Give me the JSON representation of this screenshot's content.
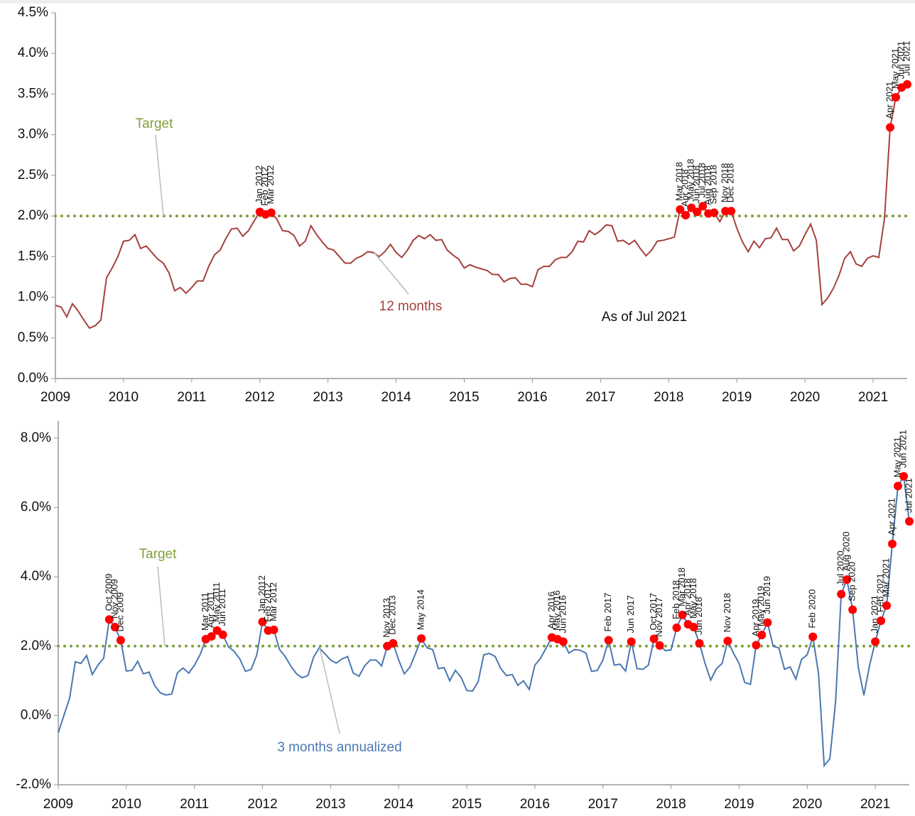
{
  "chart_data": [
    {
      "type": "line",
      "xlim": [
        2009,
        2021.5
      ],
      "xticks": [
        2009,
        2010,
        2011,
        2012,
        2013,
        2014,
        2015,
        2016,
        2017,
        2018,
        2019,
        2020,
        2021
      ],
      "ylim": [
        0,
        4.5
      ],
      "yticks": [
        {
          "value": 0,
          "label": "0.0%"
        },
        {
          "value": 0.5,
          "label": "0.5%"
        },
        {
          "value": 1,
          "label": "1.0%"
        },
        {
          "value": 1.5,
          "label": "1.5%"
        },
        {
          "value": 2,
          "label": "2.0%"
        },
        {
          "value": 2.5,
          "label": "2.5%"
        },
        {
          "value": 3,
          "label": "3.0%"
        },
        {
          "value": 3.5,
          "label": "3.5%"
        },
        {
          "value": 4,
          "label": "4.0%"
        },
        {
          "value": 4.5,
          "label": "4.5%"
        }
      ],
      "target": {
        "value": 2,
        "label": "Target",
        "color": "#7fa03a"
      },
      "note": "As of Jul 2021",
      "series": [
        {
          "name": "12 months",
          "color": "#a5403d",
          "x": [
            2009,
            2009.083,
            2009.167,
            2009.25,
            2009.333,
            2009.417,
            2009.5,
            2009.583,
            2009.667,
            2009.75,
            2009.833,
            2009.917,
            2010,
            2010.083,
            2010.167,
            2010.25,
            2010.333,
            2010.417,
            2010.5,
            2010.583,
            2010.667,
            2010.75,
            2010.833,
            2010.917,
            2011,
            2011.083,
            2011.167,
            2011.25,
            2011.333,
            2011.417,
            2011.5,
            2011.583,
            2011.667,
            2011.75,
            2011.833,
            2011.917,
            2012,
            2012.083,
            2012.167,
            2012.25,
            2012.333,
            2012.417,
            2012.5,
            2012.583,
            2012.667,
            2012.75,
            2012.833,
            2012.917,
            2013,
            2013.083,
            2013.167,
            2013.25,
            2013.333,
            2013.417,
            2013.5,
            2013.583,
            2013.667,
            2013.75,
            2013.833,
            2013.917,
            2014,
            2014.083,
            2014.167,
            2014.25,
            2014.333,
            2014.417,
            2014.5,
            2014.583,
            2014.667,
            2014.75,
            2014.833,
            2014.917,
            2015,
            2015.083,
            2015.167,
            2015.25,
            2015.333,
            2015.417,
            2015.5,
            2015.583,
            2015.667,
            2015.75,
            2015.833,
            2015.917,
            2016,
            2016.083,
            2016.167,
            2016.25,
            2016.333,
            2016.417,
            2016.5,
            2016.583,
            2016.667,
            2016.75,
            2016.833,
            2016.917,
            2017,
            2017.083,
            2017.167,
            2017.25,
            2017.333,
            2017.417,
            2017.5,
            2017.583,
            2017.667,
            2017.75,
            2017.833,
            2017.917,
            2018,
            2018.083,
            2018.167,
            2018.25,
            2018.333,
            2018.417,
            2018.5,
            2018.583,
            2018.667,
            2018.75,
            2018.833,
            2018.917,
            2019,
            2019.083,
            2019.167,
            2019.25,
            2019.333,
            2019.417,
            2019.5,
            2019.583,
            2019.667,
            2019.75,
            2019.833,
            2019.917,
            2020,
            2020.083,
            2020.167,
            2020.25,
            2020.333,
            2020.417,
            2020.5,
            2020.583,
            2020.667,
            2020.75,
            2020.833,
            2020.917,
            2021,
            2021.083,
            2021.167,
            2021.25,
            2021.333,
            2021.417,
            2021.5
          ],
          "values": [
            0.9,
            0.88,
            0.76,
            0.92,
            0.83,
            0.72,
            0.62,
            0.65,
            0.72,
            1.24,
            1.36,
            1.5,
            1.69,
            1.7,
            1.77,
            1.6,
            1.63,
            1.55,
            1.47,
            1.42,
            1.3,
            1.08,
            1.12,
            1.05,
            1.12,
            1.2,
            1.2,
            1.38,
            1.52,
            1.58,
            1.72,
            1.84,
            1.85,
            1.75,
            1.82,
            1.94,
            2.05,
            2.02,
            2.04,
            1.96,
            1.82,
            1.81,
            1.76,
            1.63,
            1.69,
            1.88,
            1.77,
            1.68,
            1.6,
            1.58,
            1.5,
            1.42,
            1.42,
            1.48,
            1.51,
            1.56,
            1.55,
            1.5,
            1.56,
            1.65,
            1.55,
            1.49,
            1.58,
            1.7,
            1.76,
            1.72,
            1.77,
            1.7,
            1.71,
            1.58,
            1.52,
            1.47,
            1.36,
            1.4,
            1.37,
            1.35,
            1.33,
            1.28,
            1.28,
            1.19,
            1.23,
            1.24,
            1.16,
            1.16,
            1.13,
            1.34,
            1.38,
            1.38,
            1.46,
            1.49,
            1.49,
            1.56,
            1.69,
            1.68,
            1.82,
            1.77,
            1.82,
            1.89,
            1.88,
            1.69,
            1.7,
            1.65,
            1.7,
            1.6,
            1.51,
            1.58,
            1.69,
            1.7,
            1.72,
            1.74,
            2.08,
            2.01,
            2.1,
            2.05,
            2.12,
            2.03,
            2.04,
            1.93,
            2.06,
            2.06,
            1.85,
            1.68,
            1.56,
            1.69,
            1.61,
            1.72,
            1.73,
            1.85,
            1.71,
            1.71,
            1.57,
            1.63,
            1.77,
            1.9,
            1.7,
            0.91,
            0.99,
            1.11,
            1.27,
            1.48,
            1.56,
            1.41,
            1.38,
            1.48,
            1.51,
            1.49,
            1.97,
            3.09,
            3.46,
            3.58,
            3.62
          ]
        }
      ],
      "point_color": "#ff0000",
      "points": [
        {
          "x": 2012,
          "y": 2.05,
          "label": "Jan 2012"
        },
        {
          "x": 2012.083,
          "y": 2.02,
          "label": "Feb 2012"
        },
        {
          "x": 2012.167,
          "y": 2.04,
          "label": "Mar 2012"
        },
        {
          "x": 2018.167,
          "y": 2.08,
          "label": "Mar 2018"
        },
        {
          "x": 2018.25,
          "y": 2.01,
          "label": "Apr 2018"
        },
        {
          "x": 2018.333,
          "y": 2.1,
          "label": "May 2018"
        },
        {
          "x": 2018.417,
          "y": 2.05,
          "label": "Jun 2018"
        },
        {
          "x": 2018.5,
          "y": 2.12,
          "label": "Jul 2018"
        },
        {
          "x": 2018.583,
          "y": 2.03,
          "label": "Aug 2018"
        },
        {
          "x": 2018.667,
          "y": 2.04,
          "label": "Sep 2018"
        },
        {
          "x": 2018.833,
          "y": 2.06,
          "label": "Nov 2018"
        },
        {
          "x": 2018.917,
          "y": 2.06,
          "label": "Dec 2018"
        },
        {
          "x": 2021.25,
          "y": 3.09,
          "label": "Apr 2021"
        },
        {
          "x": 2021.333,
          "y": 3.46,
          "label": "May 2021"
        },
        {
          "x": 2021.417,
          "y": 3.58,
          "label": "Jun 2021"
        },
        {
          "x": 2021.5,
          "y": 3.62,
          "label": "Jul 2021"
        }
      ]
    },
    {
      "type": "line",
      "xlim": [
        2009,
        2021.5
      ],
      "xticks": [
        2009,
        2010,
        2011,
        2012,
        2013,
        2014,
        2015,
        2016,
        2017,
        2018,
        2019,
        2020,
        2021
      ],
      "ylim": [
        -2,
        8.5
      ],
      "yticks": [
        {
          "value": -2,
          "label": "-2.0%"
        },
        {
          "value": 0,
          "label": "0.0%"
        },
        {
          "value": 2,
          "label": "2.0%"
        },
        {
          "value": 4,
          "label": "4.0%"
        },
        {
          "value": 6,
          "label": "6.0%"
        },
        {
          "value": 8,
          "label": "8.0%"
        }
      ],
      "target": {
        "value": 2,
        "label": "Target",
        "color": "#7fa03a"
      },
      "series": [
        {
          "name": "3 months annualized",
          "color": "#4a78b0",
          "x": [
            2009,
            2009.083,
            2009.167,
            2009.25,
            2009.333,
            2009.417,
            2009.5,
            2009.583,
            2009.667,
            2009.75,
            2009.833,
            2009.917,
            2010,
            2010.083,
            2010.167,
            2010.25,
            2010.333,
            2010.417,
            2010.5,
            2010.583,
            2010.667,
            2010.75,
            2010.833,
            2010.917,
            2011,
            2011.083,
            2011.167,
            2011.25,
            2011.333,
            2011.417,
            2011.5,
            2011.583,
            2011.667,
            2011.75,
            2011.833,
            2011.917,
            2012,
            2012.083,
            2012.167,
            2012.25,
            2012.333,
            2012.417,
            2012.5,
            2012.583,
            2012.667,
            2012.75,
            2012.833,
            2012.917,
            2013,
            2013.083,
            2013.167,
            2013.25,
            2013.333,
            2013.417,
            2013.5,
            2013.583,
            2013.667,
            2013.75,
            2013.833,
            2013.917,
            2014,
            2014.083,
            2014.167,
            2014.25,
            2014.333,
            2014.417,
            2014.5,
            2014.583,
            2014.667,
            2014.75,
            2014.833,
            2014.917,
            2015,
            2015.083,
            2015.167,
            2015.25,
            2015.333,
            2015.417,
            2015.5,
            2015.583,
            2015.667,
            2015.75,
            2015.833,
            2015.917,
            2016,
            2016.083,
            2016.167,
            2016.25,
            2016.333,
            2016.417,
            2016.5,
            2016.583,
            2016.667,
            2016.75,
            2016.833,
            2016.917,
            2017,
            2017.083,
            2017.167,
            2017.25,
            2017.333,
            2017.417,
            2017.5,
            2017.583,
            2017.667,
            2017.75,
            2017.833,
            2017.917,
            2018,
            2018.083,
            2018.167,
            2018.25,
            2018.333,
            2018.417,
            2018.5,
            2018.583,
            2018.667,
            2018.75,
            2018.833,
            2018.917,
            2019,
            2019.083,
            2019.167,
            2019.25,
            2019.333,
            2019.417,
            2019.5,
            2019.583,
            2019.667,
            2019.75,
            2019.833,
            2019.917,
            2020,
            2020.083,
            2020.167,
            2020.25,
            2020.333,
            2020.417,
            2020.5,
            2020.583,
            2020.667,
            2020.75,
            2020.833,
            2020.917,
            2021,
            2021.083,
            2021.167,
            2021.25,
            2021.333,
            2021.417,
            2021.5
          ],
          "values": [
            -0.5,
            0.0,
            0.5,
            1.55,
            1.5,
            1.73,
            1.18,
            1.45,
            1.65,
            2.77,
            2.55,
            2.17,
            1.28,
            1.3,
            1.56,
            1.2,
            1.25,
            0.86,
            0.65,
            0.59,
            0.62,
            1.23,
            1.37,
            1.22,
            1.45,
            1.75,
            2.2,
            2.28,
            2.45,
            2.33,
            1.98,
            1.85,
            1.63,
            1.27,
            1.33,
            1.75,
            2.7,
            2.45,
            2.47,
            1.9,
            1.7,
            1.42,
            1.2,
            1.09,
            1.15,
            1.68,
            1.95,
            1.78,
            1.6,
            1.51,
            1.63,
            1.7,
            1.22,
            1.13,
            1.43,
            1.6,
            1.6,
            1.43,
            2.0,
            2.08,
            1.6,
            1.2,
            1.4,
            1.8,
            2.22,
            1.95,
            1.9,
            1.35,
            1.38,
            1.0,
            1.3,
            1.1,
            0.72,
            0.7,
            0.97,
            1.75,
            1.79,
            1.7,
            1.35,
            1.15,
            1.18,
            0.87,
            1.0,
            0.75,
            1.45,
            1.65,
            1.95,
            2.25,
            2.2,
            2.13,
            1.8,
            1.9,
            1.88,
            1.8,
            1.27,
            1.3,
            1.6,
            2.17,
            1.45,
            1.48,
            1.28,
            2.13,
            1.35,
            1.33,
            1.45,
            2.21,
            2.02,
            1.87,
            1.89,
            2.53,
            2.9,
            2.63,
            2.55,
            2.08,
            1.5,
            1.02,
            1.35,
            1.5,
            2.15,
            1.8,
            1.5,
            0.95,
            0.9,
            2.03,
            2.32,
            2.68,
            2.0,
            1.95,
            1.33,
            1.4,
            1.05,
            1.62,
            1.75,
            2.27,
            1.2,
            -1.45,
            -1.25,
            0.4,
            3.5,
            3.92,
            3.05,
            1.4,
            0.58,
            1.45,
            2.13,
            2.73,
            3.17,
            4.95,
            6.62,
            6.9,
            5.6
          ]
        }
      ],
      "point_color": "#ff0000",
      "points": [
        {
          "x": 2009.75,
          "y": 2.77,
          "label": "Oct 2009"
        },
        {
          "x": 2009.833,
          "y": 2.55,
          "label": "Nov 2009"
        },
        {
          "x": 2009.917,
          "y": 2.17,
          "label": "Dec 2009"
        },
        {
          "x": 2011.167,
          "y": 2.2,
          "label": "Mar 2011"
        },
        {
          "x": 2011.25,
          "y": 2.28,
          "label": "Apr 2011"
        },
        {
          "x": 2011.333,
          "y": 2.45,
          "label": "May 2011"
        },
        {
          "x": 2011.417,
          "y": 2.33,
          "label": "Jun 2011"
        },
        {
          "x": 2012,
          "y": 2.7,
          "label": "Jan 2012"
        },
        {
          "x": 2012.083,
          "y": 2.45,
          "label": "Feb 2012"
        },
        {
          "x": 2012.167,
          "y": 2.47,
          "label": "Mar 2012"
        },
        {
          "x": 2013.833,
          "y": 2.0,
          "label": "Nov 2013"
        },
        {
          "x": 2013.917,
          "y": 2.08,
          "label": "Dec 2013"
        },
        {
          "x": 2014.333,
          "y": 2.22,
          "label": "May 2014"
        },
        {
          "x": 2016.25,
          "y": 2.25,
          "label": "Apr 2016"
        },
        {
          "x": 2016.333,
          "y": 2.2,
          "label": "May 2016"
        },
        {
          "x": 2016.417,
          "y": 2.13,
          "label": "Jun 2016"
        },
        {
          "x": 2017.083,
          "y": 2.17,
          "label": "Feb 2017"
        },
        {
          "x": 2017.417,
          "y": 2.13,
          "label": "Jun 2017"
        },
        {
          "x": 2017.75,
          "y": 2.21,
          "label": "Oct 2017"
        },
        {
          "x": 2017.833,
          "y": 2.02,
          "label": "Nov 2017"
        },
        {
          "x": 2018.083,
          "y": 2.53,
          "label": "Feb 2018"
        },
        {
          "x": 2018.167,
          "y": 2.9,
          "label": "Mar 2018"
        },
        {
          "x": 2018.25,
          "y": 2.63,
          "label": "Apr 2018"
        },
        {
          "x": 2018.333,
          "y": 2.55,
          "label": "May 2018"
        },
        {
          "x": 2018.417,
          "y": 2.08,
          "label": "Jun 2018"
        },
        {
          "x": 2018.833,
          "y": 2.15,
          "label": "Nov 2018"
        },
        {
          "x": 2019.25,
          "y": 2.03,
          "label": "Apr 2019"
        },
        {
          "x": 2019.333,
          "y": 2.32,
          "label": "May 2019"
        },
        {
          "x": 2019.417,
          "y": 2.68,
          "label": "Jun 2019"
        },
        {
          "x": 2020.083,
          "y": 2.27,
          "label": "Feb 2020"
        },
        {
          "x": 2020.5,
          "y": 3.5,
          "label": "Jul 2020"
        },
        {
          "x": 2020.583,
          "y": 3.92,
          "label": "Aug 2020"
        },
        {
          "x": 2020.667,
          "y": 3.05,
          "label": "Sep 2020"
        },
        {
          "x": 2021,
          "y": 2.13,
          "label": "Jan 2021"
        },
        {
          "x": 2021.083,
          "y": 2.73,
          "label": "Feb 2021"
        },
        {
          "x": 2021.167,
          "y": 3.17,
          "label": "Mar 2021"
        },
        {
          "x": 2021.25,
          "y": 4.95,
          "label": "Apr 2021"
        },
        {
          "x": 2021.333,
          "y": 6.62,
          "label": "May 2021"
        },
        {
          "x": 2021.417,
          "y": 6.9,
          "label": "Jun 2021"
        },
        {
          "x": 2021.5,
          "y": 5.6,
          "label": "Jul 2021"
        }
      ]
    }
  ]
}
